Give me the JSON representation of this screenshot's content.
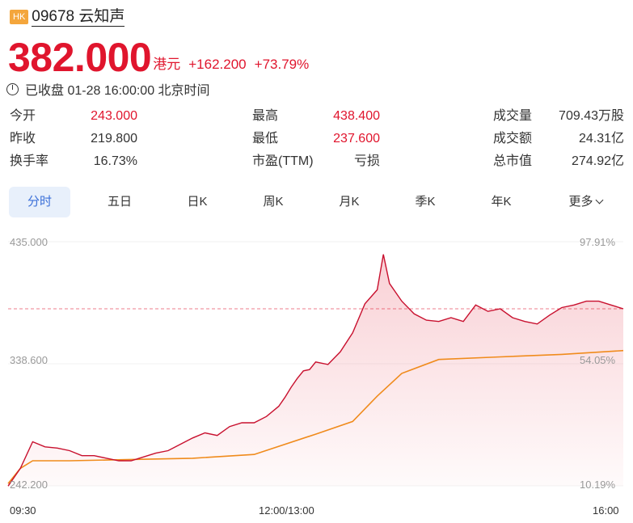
{
  "header": {
    "badge": "HK",
    "stock_name": "09678 云知声"
  },
  "quote": {
    "price": "382.000",
    "currency": "港元",
    "change": "+162.200",
    "change_pct": "+73.79%"
  },
  "status": {
    "text": "已收盘 01-28 16:00:00 北京时间"
  },
  "stats": [
    {
      "label": "今开",
      "value": "243.000",
      "color": "red"
    },
    {
      "label": "最高",
      "value": "438.400",
      "color": "red"
    },
    {
      "label": "成交量",
      "value": "709.43万股",
      "color": "dark"
    },
    {
      "label": "昨收",
      "value": "219.800",
      "color": "dark"
    },
    {
      "label": "最低",
      "value": "237.600",
      "color": "red"
    },
    {
      "label": "成交额",
      "value": "24.31亿",
      "color": "dark"
    },
    {
      "label": "换手率",
      "value": "16.73%",
      "color": "dark"
    },
    {
      "label": "市盈(TTM)",
      "value": "亏损",
      "color": "dark"
    },
    {
      "label": "总市值",
      "value": "274.92亿",
      "color": "dark"
    }
  ],
  "tabs": [
    {
      "label": "分时",
      "active": true
    },
    {
      "label": "五日",
      "active": false
    },
    {
      "label": "日K",
      "active": false
    },
    {
      "label": "周K",
      "active": false
    },
    {
      "label": "月K",
      "active": false
    },
    {
      "label": "季K",
      "active": false
    },
    {
      "label": "年K",
      "active": false
    },
    {
      "label": "更多",
      "active": false
    }
  ],
  "colors": {
    "up": "#e0152d",
    "avg_line": "#f08b1c",
    "tab_active_bg": "#e8f0fb",
    "tab_active_text": "#3a6fd8"
  },
  "chart_data": {
    "type": "line",
    "y_left_labels": [
      "435.000",
      "338.600",
      "242.200"
    ],
    "y_right_labels": [
      "97.91%",
      "54.05%",
      "10.19%"
    ],
    "x_labels": [
      "09:30",
      "12:00/13:00",
      "16:00"
    ],
    "ylim": [
      242.2,
      435.0
    ],
    "prev_close": 219.8,
    "reference_line": 382.0,
    "series": [
      {
        "x": [
          0,
          2,
          4,
          6,
          8,
          10,
          12,
          14,
          16,
          18,
          20,
          22,
          24,
          26,
          28,
          30,
          32,
          34,
          36,
          38,
          40,
          42,
          44,
          45,
          46,
          47,
          48,
          49,
          50,
          52,
          54,
          56,
          58,
          60,
          61,
          62,
          64,
          66,
          68,
          70,
          72,
          74,
          76,
          78,
          80,
          82,
          84,
          86,
          88,
          90,
          92,
          94,
          96,
          98,
          100
        ],
        "y": [
          242,
          256,
          277,
          273,
          272,
          270,
          266,
          266,
          264,
          262,
          262,
          265,
          268,
          270,
          275,
          280,
          284,
          282,
          289,
          292,
          292,
          297,
          305,
          312,
          320,
          327,
          333,
          334,
          340,
          338,
          348,
          363,
          386,
          397,
          425,
          402,
          388,
          378,
          373,
          372,
          375,
          372,
          385,
          380,
          382,
          375,
          372,
          370,
          377,
          383,
          385,
          388,
          388,
          385,
          382
        ]
      },
      {
        "x": [
          0,
          2,
          4,
          6,
          10,
          20,
          30,
          40,
          50,
          56,
          60,
          64,
          70,
          80,
          90,
          100
        ],
        "y": [
          244,
          256,
          262,
          262,
          262,
          263,
          264,
          267,
          283,
          293,
          313,
          331,
          342,
          344,
          346,
          349
        ]
      }
    ]
  }
}
